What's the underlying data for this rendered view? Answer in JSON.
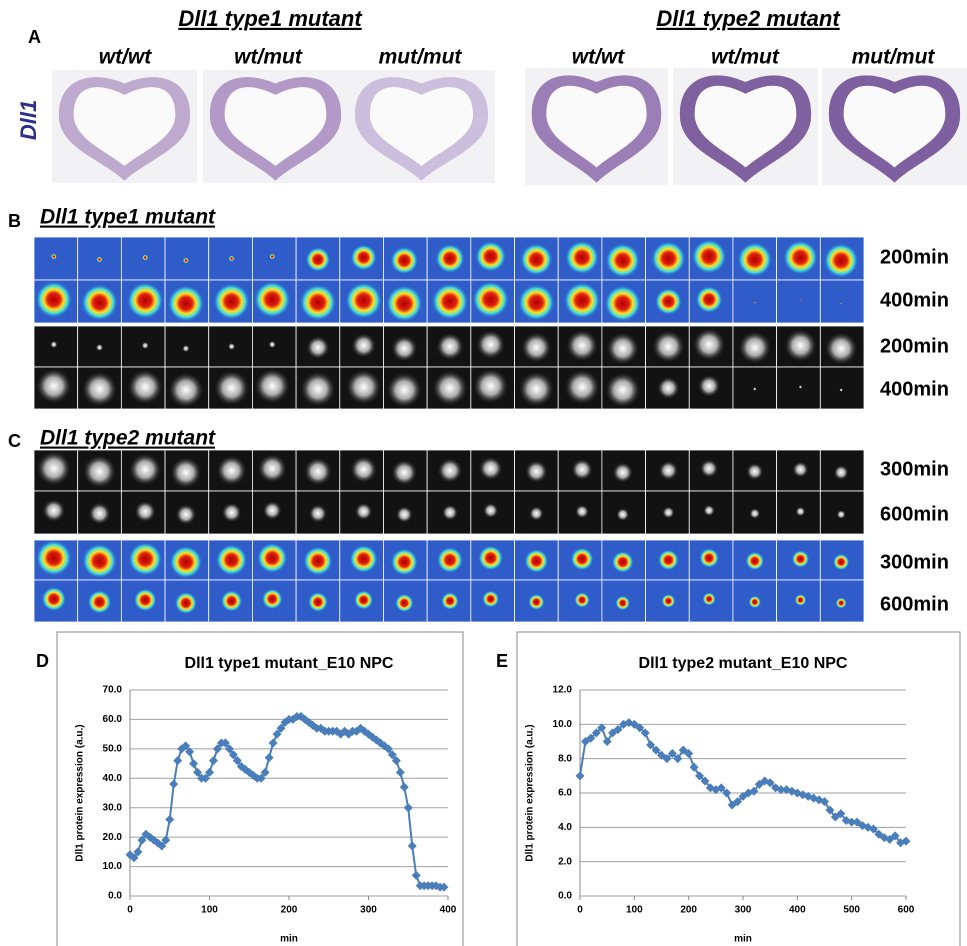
{
  "panel_a": {
    "label": "A",
    "marker": "Dll1",
    "groups": [
      {
        "title": "Dll1 type1 mutant",
        "genotypes": [
          "wt/wt",
          "wt/mut",
          "mut/mut"
        ]
      },
      {
        "title": "Dll1 type2 mutant",
        "genotypes": [
          "wt/wt",
          "wt/mut",
          "mut/mut"
        ]
      }
    ]
  },
  "panel_b": {
    "label": "B",
    "title": "Dll1 type1 mutant",
    "row_labels": [
      "200min",
      "400min",
      "200min",
      "400min"
    ]
  },
  "panel_c": {
    "label": "C",
    "title": "Dll1 type2 mutant",
    "row_labels": [
      "300min",
      "600min",
      "300min",
      "600min"
    ]
  },
  "chart_data": [
    {
      "type": "line",
      "label": "D",
      "title": "Dll1 type1 mutant_E10 NPC",
      "x_label": "min",
      "y_label": "Dll1 protein expression (a.u.)",
      "xlim": [
        0,
        400
      ],
      "xticks": [
        0,
        100,
        200,
        300,
        400
      ],
      "ylim": [
        0,
        70
      ],
      "yticks": [
        {
          "value": 0,
          "label": "0.0"
        },
        {
          "value": 10,
          "label": "10.0"
        },
        {
          "value": 20,
          "label": "20.0"
        },
        {
          "value": 30,
          "label": "30.0"
        },
        {
          "value": 40,
          "label": "40.0"
        },
        {
          "value": 50,
          "label": "50.0"
        },
        {
          "value": 60,
          "label": "60.0"
        },
        {
          "value": 70,
          "label": "70.0"
        }
      ],
      "grid": true,
      "x": [
        0,
        5,
        10,
        15,
        20,
        25,
        30,
        35,
        40,
        45,
        50,
        55,
        60,
        65,
        70,
        75,
        80,
        85,
        90,
        95,
        100,
        105,
        110,
        115,
        120,
        125,
        130,
        135,
        140,
        145,
        150,
        155,
        160,
        165,
        170,
        175,
        180,
        185,
        190,
        195,
        200,
        205,
        210,
        215,
        220,
        225,
        230,
        235,
        240,
        245,
        250,
        255,
        260,
        265,
        270,
        275,
        280,
        285,
        290,
        295,
        300,
        305,
        310,
        315,
        320,
        325,
        330,
        335,
        340,
        345,
        350,
        355,
        360,
        365,
        370,
        375,
        380,
        385,
        390,
        395
      ],
      "series": [
        {
          "color": "#4a7ebb",
          "values": [
            14,
            13,
            15,
            19,
            21,
            20,
            19,
            18,
            17,
            19,
            26,
            38,
            46,
            50,
            51,
            49,
            45,
            42,
            40,
            40,
            42,
            46,
            50,
            52,
            52,
            50,
            48,
            46,
            44,
            43,
            42,
            41,
            40,
            40,
            42,
            47,
            52,
            55,
            57,
            59,
            60,
            60,
            61,
            61,
            60,
            59,
            58,
            57,
            57,
            56,
            56,
            56,
            56,
            55,
            56,
            55,
            56,
            56,
            57,
            56,
            55,
            54,
            53,
            52,
            51,
            50,
            48,
            46,
            42,
            37,
            30,
            17,
            7,
            3.5,
            3.5,
            3.5,
            3.5,
            3.5,
            3,
            3
          ]
        }
      ]
    },
    {
      "type": "line",
      "label": "E",
      "title": "Dll1 type2 mutant_E10 NPC",
      "x_label": "min",
      "y_label": "Dll1 protein expression (a.u.)",
      "xlim": [
        0,
        600
      ],
      "xticks": [
        0,
        100,
        200,
        300,
        400,
        500,
        600
      ],
      "ylim": [
        0,
        12
      ],
      "yticks": [
        {
          "value": 0,
          "label": "0.0"
        },
        {
          "value": 2,
          "label": "2.0"
        },
        {
          "value": 4,
          "label": "4.0"
        },
        {
          "value": 6,
          "label": "6.0"
        },
        {
          "value": 8,
          "label": "8.0"
        },
        {
          "value": 10,
          "label": "10.0"
        },
        {
          "value": 12,
          "label": "12.0"
        }
      ],
      "grid": true,
      "x": [
        0,
        10,
        20,
        30,
        40,
        50,
        60,
        70,
        80,
        90,
        100,
        110,
        120,
        130,
        140,
        150,
        160,
        170,
        180,
        190,
        200,
        210,
        220,
        230,
        240,
        250,
        260,
        270,
        280,
        290,
        300,
        310,
        320,
        330,
        340,
        350,
        360,
        370,
        380,
        390,
        400,
        410,
        420,
        430,
        440,
        450,
        460,
        470,
        480,
        490,
        500,
        510,
        520,
        530,
        540,
        550,
        560,
        570,
        580,
        590,
        600
      ],
      "series": [
        {
          "color": "#4a7ebb",
          "values": [
            7,
            9,
            9.2,
            9.5,
            9.8,
            9,
            9.5,
            9.7,
            10,
            10.1,
            10,
            9.8,
            9.5,
            8.8,
            8.5,
            8.2,
            8,
            8.3,
            8,
            8.5,
            8.3,
            7.5,
            7,
            6.7,
            6.3,
            6.2,
            6.3,
            6,
            5.3,
            5.5,
            5.8,
            6,
            6.1,
            6.5,
            6.7,
            6.6,
            6.3,
            6.2,
            6.2,
            6.1,
            6,
            5.9,
            5.8,
            5.7,
            5.6,
            5.5,
            5,
            4.6,
            4.8,
            4.4,
            4.3,
            4.3,
            4.1,
            4,
            3.9,
            3.6,
            3.4,
            3.3,
            3.5,
            3.1,
            3.2
          ]
        }
      ]
    }
  ]
}
